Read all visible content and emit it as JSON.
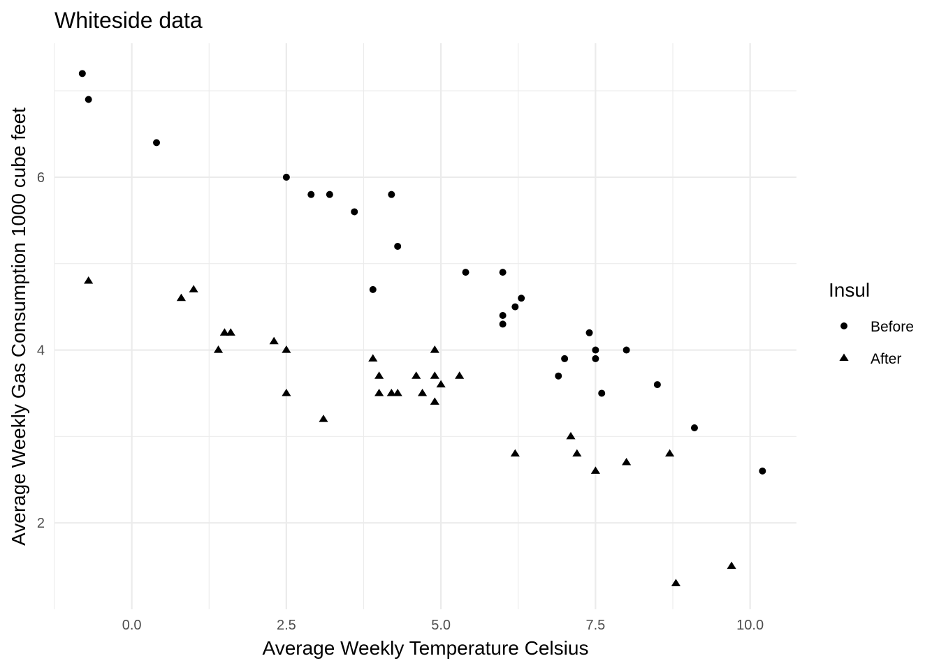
{
  "chart_data": {
    "type": "scatter",
    "title": "Whiteside data",
    "xlabel": "Average Weekly Temperature Celsius",
    "ylabel": "Average Weekly Gas Consumption 1000 cube feet",
    "xlim": [
      -1.25,
      10.75
    ],
    "ylim": [
      1.0,
      7.55
    ],
    "x_ticks": [
      0.0,
      2.5,
      5.0,
      7.5,
      10.0
    ],
    "x_tick_labels": [
      "0.0",
      "2.5",
      "5.0",
      "7.5",
      "10.0"
    ],
    "x_minor_ticks": [
      -1.25,
      1.25,
      3.75,
      6.25,
      8.75
    ],
    "y_ticks": [
      2,
      4,
      6
    ],
    "y_tick_labels": [
      "2",
      "4",
      "6"
    ],
    "y_minor_ticks": [
      3,
      5,
      7
    ],
    "grid": true,
    "legend": {
      "title": "Insul",
      "position": "right",
      "entries": [
        {
          "label": "Before",
          "shape": "circle"
        },
        {
          "label": "After",
          "shape": "triangle"
        }
      ]
    },
    "colors": {
      "points": "#000000",
      "grid": "#ebebeb",
      "tick_text": "#4d4d4d"
    },
    "series": [
      {
        "name": "Before",
        "shape": "circle",
        "x": [
          -0.8,
          -0.7,
          0.4,
          2.5,
          2.9,
          3.2,
          3.6,
          3.9,
          4.2,
          4.3,
          5.4,
          6.0,
          6.0,
          6.0,
          6.2,
          6.3,
          6.9,
          7.0,
          7.4,
          7.5,
          7.5,
          7.6,
          8.0,
          8.5,
          9.1,
          10.2
        ],
        "y": [
          7.2,
          6.9,
          6.4,
          6.0,
          5.8,
          5.8,
          5.6,
          4.7,
          5.8,
          5.2,
          4.9,
          4.9,
          4.4,
          4.3,
          4.5,
          4.6,
          3.7,
          3.9,
          4.2,
          4.0,
          3.9,
          3.5,
          4.0,
          3.6,
          3.1,
          2.6
        ]
      },
      {
        "name": "After",
        "shape": "triangle",
        "x": [
          -0.7,
          0.8,
          1.0,
          1.4,
          1.5,
          1.6,
          2.3,
          2.5,
          2.5,
          3.1,
          3.9,
          4.0,
          4.0,
          4.2,
          4.3,
          4.6,
          4.7,
          4.9,
          4.9,
          4.9,
          5.0,
          5.3,
          6.2,
          7.1,
          7.2,
          7.5,
          8.0,
          8.7,
          8.8,
          9.7
        ],
        "y": [
          4.8,
          4.6,
          4.7,
          4.0,
          4.2,
          4.2,
          4.1,
          4.0,
          3.5,
          3.2,
          3.9,
          3.5,
          3.7,
          3.5,
          3.5,
          3.7,
          3.5,
          3.4,
          3.7,
          4.0,
          3.6,
          3.7,
          2.8,
          3.0,
          2.8,
          2.6,
          2.7,
          2.8,
          1.3,
          1.5
        ]
      }
    ]
  }
}
